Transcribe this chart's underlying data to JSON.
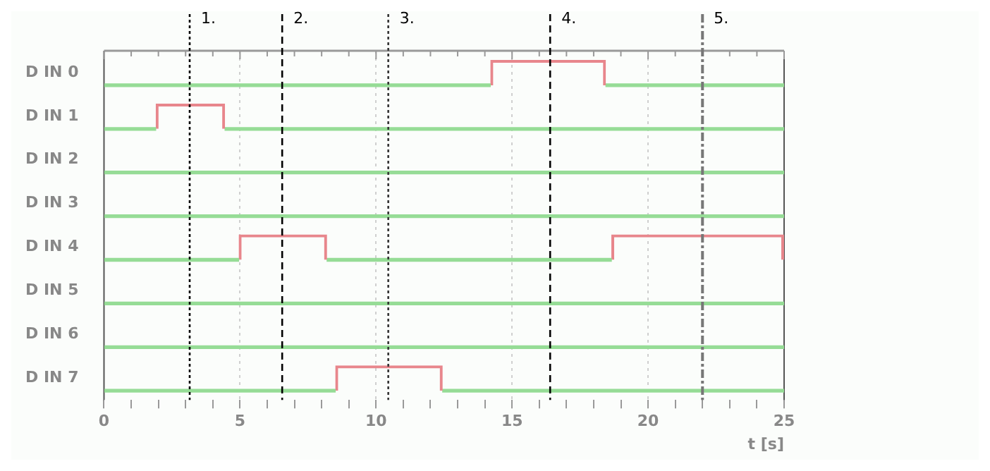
{
  "chart_data": {
    "type": "bar",
    "orientation": "horizontal",
    "stacked": true,
    "xlabel": "t [s]",
    "categories": [
      "D IN 0",
      "D IN 1",
      "D IN 2",
      "D IN 3",
      "D IN 4",
      "D IN 5",
      "D IN 6",
      "D IN 7"
    ],
    "series": [
      {
        "color": "#96dc96",
        "values": [
          14.2,
          1.9,
          25,
          25,
          4.95,
          25,
          25,
          8.5
        ]
      },
      {
        "color": "#e8868c",
        "values": [
          4.25,
          2.55,
          null,
          null,
          3.25,
          null,
          null,
          3.95
        ]
      },
      {
        "color": "#96dc96",
        "values": [
          6.55,
          20.55,
          null,
          null,
          10.45,
          null,
          null,
          12.55
        ]
      },
      {
        "color": "#e8868c",
        "values": [
          null,
          null,
          null,
          null,
          6.35,
          null,
          null,
          null
        ]
      }
    ],
    "xlim": [
      0,
      25
    ],
    "xticks": [
      0,
      {
        "value": 1,
        "label": null
      },
      {
        "value": 2,
        "label": null
      },
      {
        "value": 3,
        "label": null
      },
      {
        "value": 4,
        "label": null
      },
      5,
      {
        "value": 6,
        "label": null
      },
      {
        "value": 7,
        "label": null
      },
      {
        "value": 8,
        "label": null
      },
      {
        "value": 9,
        "label": null
      },
      10,
      {
        "value": 11,
        "label": null
      },
      {
        "value": 12,
        "label": null
      },
      {
        "value": 13,
        "label": null
      },
      {
        "value": 14,
        "label": null
      },
      15,
      {
        "value": 16,
        "label": null
      },
      {
        "value": 17,
        "label": null
      },
      {
        "value": 18,
        "label": null
      },
      {
        "value": 19,
        "label": null
      },
      20,
      {
        "value": 21,
        "label": null
      },
      {
        "value": 22,
        "label": null
      },
      {
        "value": 23,
        "label": null
      },
      {
        "value": 24,
        "label": null
      },
      25
    ],
    "grid": "x",
    "ref_lines": [
      {
        "axis": "x",
        "value": 3.15,
        "line_style": "dotted",
        "color": "#000000"
      },
      {
        "axis": "x",
        "value": 6.55,
        "line_style": "dashed",
        "color": "#000000"
      },
      {
        "axis": "x",
        "value": 10.45,
        "line_style": "dotted",
        "color": "#333333"
      },
      {
        "axis": "x",
        "value": 16.4,
        "line_style": "dashed",
        "color": "#000000"
      },
      {
        "axis": "x",
        "value": 22,
        "line_style": "dashdot",
        "color": "#777777"
      }
    ],
    "annotations": [
      {
        "text": "1.",
        "x": 3.15
      },
      {
        "text": "2.",
        "x": 6.55
      },
      {
        "text": "3.",
        "x": 10.45
      },
      {
        "text": "4.",
        "x": 16.4
      },
      {
        "text": "5.",
        "x": 22
      }
    ]
  }
}
